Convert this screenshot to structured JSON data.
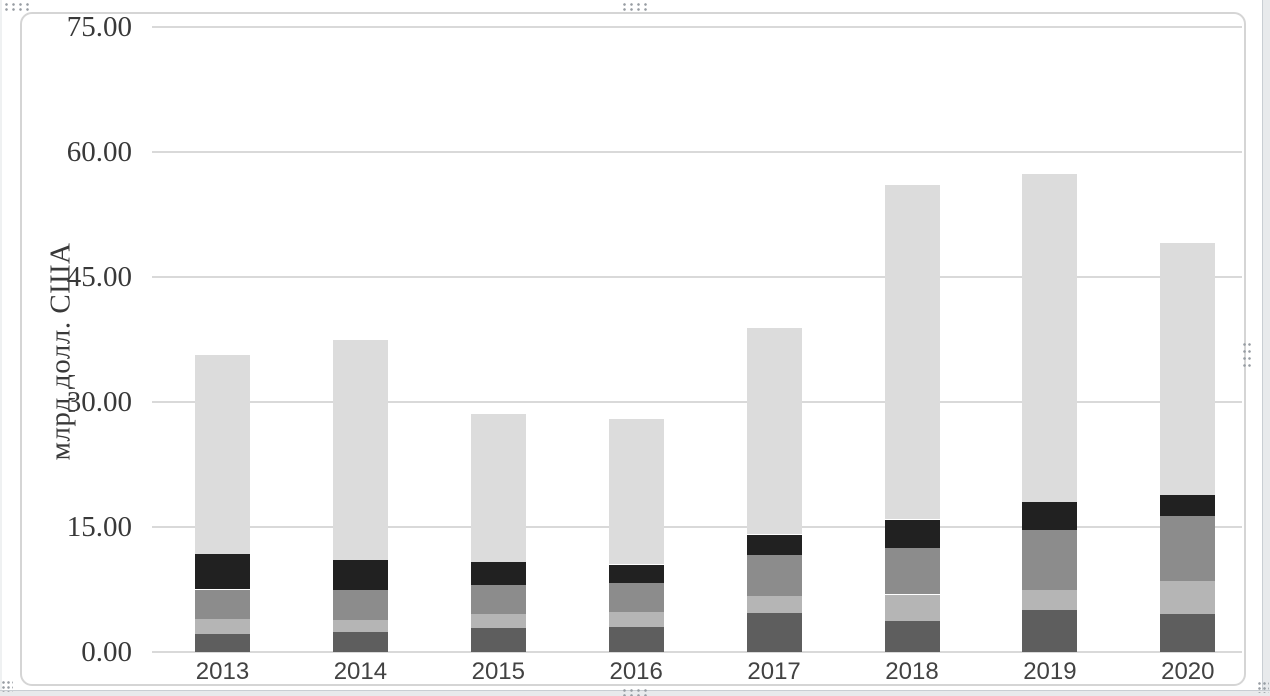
{
  "axis": {
    "y_title": "млрд долл. США",
    "y_tick_labels": [
      "0.00",
      "15.00",
      "30.00",
      "45.00",
      "60.00",
      "75.00"
    ]
  },
  "chart_data": {
    "type": "bar",
    "stacked": true,
    "title": "",
    "xlabel": "",
    "ylabel": "млрд долл. США",
    "ylim": [
      0,
      75
    ],
    "ytick_step": 15,
    "grid": true,
    "legend": false,
    "categories": [
      "2013",
      "2014",
      "2015",
      "2016",
      "2017",
      "2018",
      "2019",
      "2020"
    ],
    "yticks": [
      {
        "value": 0,
        "label": "0.00"
      },
      {
        "value": 15,
        "label": "15.00"
      },
      {
        "value": 30,
        "label": "30.00"
      },
      {
        "value": 45,
        "label": "45.00"
      },
      {
        "value": 60,
        "label": "60.00"
      },
      {
        "value": 75,
        "label": "75.00"
      }
    ],
    "series": [
      {
        "name": "segment-1-bottom-dark-gray",
        "color": "#5e5e5e",
        "values": [
          2.2,
          2.4,
          2.9,
          3.0,
          4.7,
          3.7,
          5.0,
          4.6
        ]
      },
      {
        "name": "segment-2-silver",
        "color": "#b5b5b5",
        "values": [
          1.8,
          1.4,
          1.7,
          1.8,
          2.0,
          3.2,
          2.4,
          3.9
        ]
      },
      {
        "name": "segment-3-medium-gray",
        "color": "#8c8c8c",
        "values": [
          3.5,
          3.6,
          3.4,
          3.5,
          4.9,
          5.6,
          7.2,
          7.8
        ]
      },
      {
        "name": "segment-4-black",
        "color": "#212121",
        "values": [
          4.3,
          3.7,
          2.8,
          2.2,
          2.5,
          3.4,
          3.4,
          2.5
        ]
      },
      {
        "name": "segment-5-top-light-gray",
        "color": "#dcdcdc",
        "values": [
          23.8,
          26.4,
          17.8,
          17.5,
          24.8,
          40.1,
          39.4,
          30.3
        ]
      }
    ],
    "totals": [
      35.6,
      37.5,
      28.6,
      28.0,
      38.9,
      56.0,
      57.4,
      49.1
    ]
  }
}
